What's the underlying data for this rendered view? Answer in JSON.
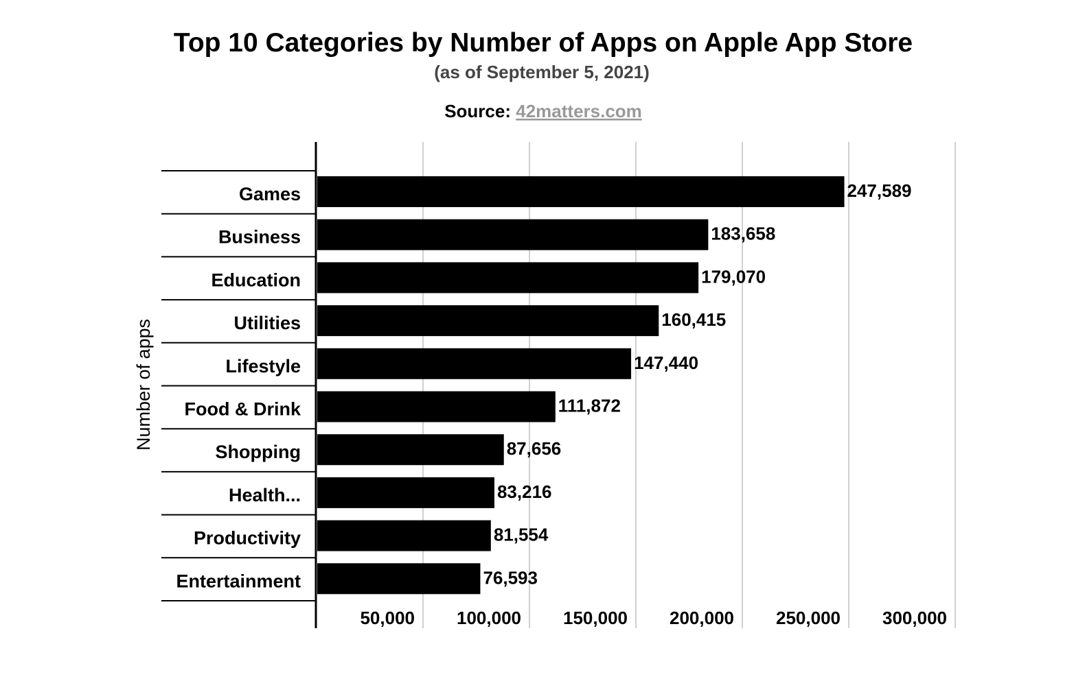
{
  "chart_data": {
    "type": "bar",
    "orientation": "horizontal",
    "title": "Top 10 Categories by Number of Apps on Apple App Store",
    "subtitle": "(as of September 5, 2021)",
    "source_label": "Source:",
    "source_link": "42matters.com",
    "ylabel": "Number of apps",
    "xlabel": "",
    "categories": [
      "Games",
      "Business",
      "Education",
      "Utilities",
      "Lifestyle",
      "Food & Drink",
      "Shopping",
      "Health...",
      "Productivity",
      "Entertainment"
    ],
    "values": [
      247589,
      183658,
      179070,
      160415,
      147440,
      111872,
      87656,
      83216,
      81554,
      76593
    ],
    "value_labels": [
      "247,589",
      "183,658",
      "179,070",
      "160,415",
      "147,440",
      "111,872",
      "87,656",
      "83,216",
      "81,554",
      "76,593"
    ],
    "xlim": [
      0,
      300000
    ],
    "xticks": [
      50000,
      100000,
      150000,
      200000,
      250000,
      300000
    ],
    "xtick_labels": [
      "50,000",
      "100,000",
      "150,000",
      "200,000",
      "250,000",
      "300,000"
    ],
    "grid": true,
    "colors": {
      "bar": "#000000",
      "grid": "#d0d0d0",
      "subtitle": "#444444",
      "link": "#999999"
    }
  }
}
